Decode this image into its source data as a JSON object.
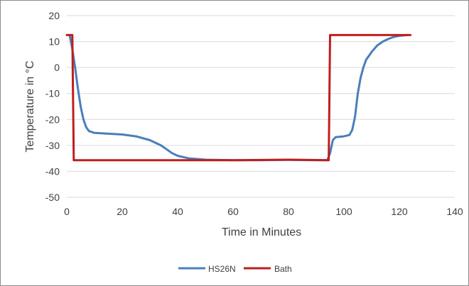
{
  "chart_data": {
    "type": "line",
    "title": "",
    "xlabel": "Time in Minutes",
    "ylabel": "Temperature in °C",
    "xlim": [
      0,
      140
    ],
    "ylim": [
      -50,
      20
    ],
    "xticks": [
      0,
      20,
      40,
      60,
      80,
      100,
      120,
      140
    ],
    "yticks": [
      20,
      10,
      0,
      -10,
      -20,
      -30,
      -40,
      -50
    ],
    "grid": "horizontal",
    "legend": "bottom",
    "series": [
      {
        "name": "HS26N",
        "color": "#4a7ebb",
        "points": [
          [
            1,
            12.5
          ],
          [
            1.5,
            10
          ],
          [
            2,
            7
          ],
          [
            3,
            0
          ],
          [
            4,
            -8
          ],
          [
            5,
            -15
          ],
          [
            6,
            -20
          ],
          [
            7,
            -23
          ],
          [
            8,
            -24.5
          ],
          [
            10,
            -25.2
          ],
          [
            15,
            -25.5
          ],
          [
            20,
            -25.8
          ],
          [
            25,
            -26.5
          ],
          [
            30,
            -28
          ],
          [
            34,
            -30
          ],
          [
            36,
            -31.5
          ],
          [
            38,
            -33
          ],
          [
            40,
            -34
          ],
          [
            44,
            -35
          ],
          [
            50,
            -35.5
          ],
          [
            60,
            -35.7
          ],
          [
            70,
            -35.7
          ],
          [
            80,
            -35.6
          ],
          [
            90,
            -35.7
          ],
          [
            94,
            -35.7
          ],
          [
            95,
            -33
          ],
          [
            96,
            -28
          ],
          [
            97,
            -26.8
          ],
          [
            100,
            -26.5
          ],
          [
            102,
            -26
          ],
          [
            103,
            -24
          ],
          [
            104,
            -19
          ],
          [
            105,
            -10
          ],
          [
            106,
            -4
          ],
          [
            107,
            0
          ],
          [
            108,
            3
          ],
          [
            110,
            6
          ],
          [
            112,
            8.5
          ],
          [
            114,
            10
          ],
          [
            116,
            11
          ],
          [
            118,
            11.8
          ],
          [
            120,
            12.2
          ],
          [
            123,
            12.5
          ]
        ]
      },
      {
        "name": "Bath",
        "color": "#be1e1e",
        "points": [
          [
            0,
            12.5
          ],
          [
            2,
            12.5
          ],
          [
            2.5,
            -35.7
          ],
          [
            20,
            -35.7
          ],
          [
            40,
            -35.7
          ],
          [
            60,
            -35.7
          ],
          [
            80,
            -35.5
          ],
          [
            94.5,
            -35.7
          ],
          [
            95,
            12.5
          ],
          [
            110,
            12.5
          ],
          [
            124,
            12.5
          ]
        ]
      }
    ]
  }
}
